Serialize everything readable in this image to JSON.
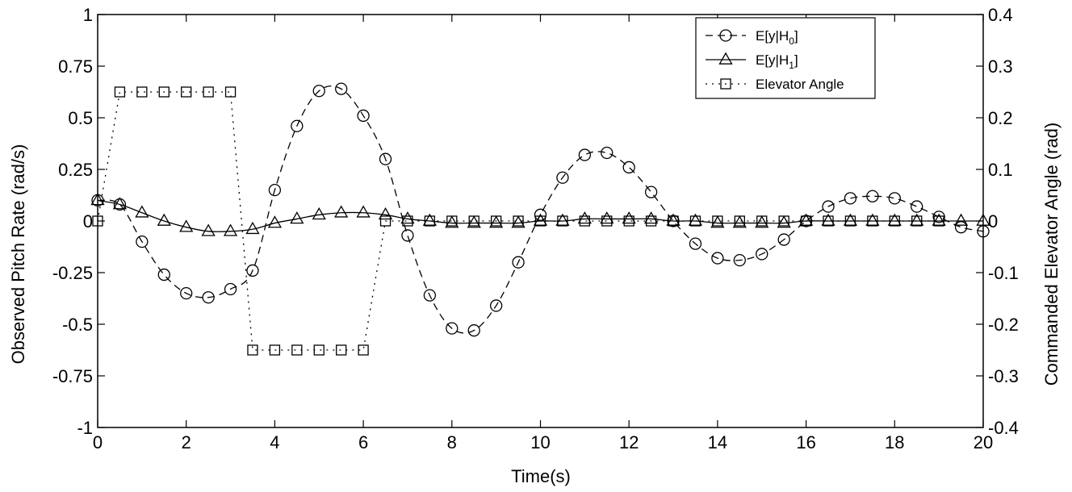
{
  "chart_data": {
    "type": "line",
    "xlabel": "Time(s)",
    "ylabel": "Observed Pitch Rate (rad/s)",
    "y2label": "Commanded Elevator Angle (rad)",
    "xlim": [
      0,
      20
    ],
    "ylim": [
      -1,
      1
    ],
    "y2lim": [
      -0.4,
      0.4
    ],
    "xticks": [
      "0",
      "2",
      "4",
      "6",
      "8",
      "10",
      "12",
      "14",
      "16",
      "18",
      "20"
    ],
    "yticks": [
      "-1",
      "-0.75",
      "-0.5",
      "-0.25",
      "0",
      "0.25",
      "0.5",
      "0.75",
      "1"
    ],
    "y2ticks": [
      "-0.4",
      "-0.3",
      "-0.2",
      "-0.1",
      "0",
      "0.1",
      "0.2",
      "0.3",
      "0.4"
    ],
    "grid": false,
    "legend_position": "top-right",
    "series": [
      {
        "name": "E[y|H0]",
        "legend_parts": [
          "E[y|H",
          "0",
          "]"
        ],
        "axis": "left",
        "line": "dashed",
        "marker": "circle",
        "x": [
          0,
          0.5,
          1,
          1.5,
          2,
          2.5,
          3,
          3.5,
          4,
          4.5,
          5,
          5.5,
          6,
          6.5,
          7,
          7.5,
          8,
          8.5,
          9,
          9.5,
          10,
          10.5,
          11,
          11.5,
          12,
          12.5,
          13,
          13.5,
          14,
          14.5,
          15,
          15.5,
          16,
          16.5,
          17,
          17.5,
          18,
          18.5,
          19,
          19.5,
          20
        ],
        "y": [
          0.1,
          0.08,
          -0.1,
          -0.26,
          -0.35,
          -0.37,
          -0.33,
          -0.24,
          0.15,
          0.46,
          0.63,
          0.64,
          0.51,
          0.3,
          -0.07,
          -0.36,
          -0.52,
          -0.53,
          -0.41,
          -0.2,
          0.03,
          0.21,
          0.32,
          0.33,
          0.26,
          0.14,
          0.0,
          -0.11,
          -0.18,
          -0.19,
          -0.16,
          -0.09,
          0.0,
          0.07,
          0.11,
          0.12,
          0.11,
          0.07,
          0.02,
          -0.03,
          -0.05
        ]
      },
      {
        "name": "E[y|H1]",
        "legend_parts": [
          "E[y|H",
          "1",
          "]"
        ],
        "axis": "left",
        "line": "solid",
        "marker": "triangle",
        "x": [
          0,
          0.5,
          1,
          1.5,
          2,
          2.5,
          3,
          3.5,
          4,
          4.5,
          5,
          5.5,
          6,
          6.5,
          7,
          7.5,
          8,
          8.5,
          9,
          9.5,
          10,
          10.5,
          11,
          11.5,
          12,
          12.5,
          13,
          13.5,
          14,
          14.5,
          15,
          15.5,
          16,
          16.5,
          17,
          17.5,
          18,
          18.5,
          19,
          19.5,
          20
        ],
        "y": [
          0.1,
          0.08,
          0.04,
          0.0,
          -0.03,
          -0.05,
          -0.05,
          -0.04,
          -0.01,
          0.01,
          0.03,
          0.04,
          0.04,
          0.03,
          0.01,
          0.0,
          -0.01,
          -0.01,
          -0.01,
          -0.01,
          0.0,
          0.0,
          0.01,
          0.01,
          0.01,
          0.01,
          0.0,
          0.0,
          -0.01,
          -0.01,
          -0.01,
          -0.01,
          0.0,
          0.0,
          0.0,
          0.0,
          0.0,
          0.0,
          0.0,
          0.0,
          0.0
        ]
      },
      {
        "name": "Elevator Angle",
        "legend_parts": [
          "Elevator Angle",
          "",
          ""
        ],
        "axis": "right",
        "line": "dotted",
        "marker": "square",
        "x": [
          0,
          0.5,
          1,
          1.5,
          2,
          2.5,
          3,
          3.5,
          4,
          4.5,
          5,
          5.5,
          6,
          6.5,
          7,
          7.5,
          8,
          8.5,
          9,
          9.5,
          10,
          10.5,
          11,
          11.5,
          12,
          12.5,
          13,
          13.5,
          14,
          14.5,
          15,
          15.5,
          16,
          16.5,
          17,
          17.5,
          18,
          18.5,
          19
        ],
        "y": [
          0,
          0.25,
          0.25,
          0.25,
          0.25,
          0.25,
          0.25,
          -0.25,
          -0.25,
          -0.25,
          -0.25,
          -0.25,
          -0.25,
          0,
          0,
          0,
          0,
          0,
          0,
          0,
          0,
          0,
          0,
          0,
          0,
          0,
          0,
          0,
          0,
          0,
          0,
          0,
          0,
          0,
          0,
          0,
          0,
          0,
          0
        ]
      }
    ]
  }
}
